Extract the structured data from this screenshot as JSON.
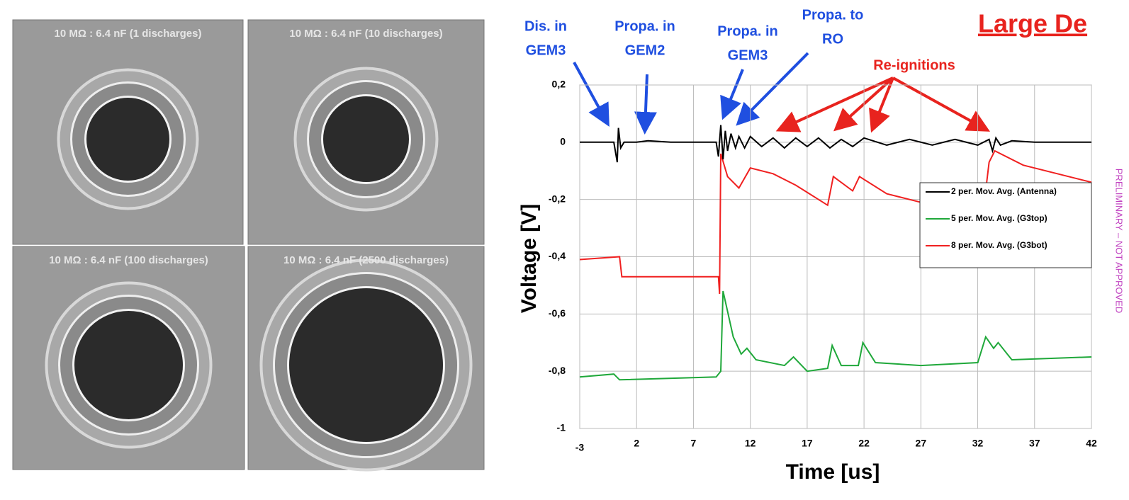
{
  "panels": [
    {
      "label": "10 MΩ : 6.4 nF (1 discharges)"
    },
    {
      "label": "10 MΩ : 6.4 nF  (10 discharges)"
    },
    {
      "label": "10 MΩ : 6.4 nF  (100 discharges)"
    },
    {
      "label": "10 MΩ : 6.4 nF  (2500 discharges)"
    }
  ],
  "slide_title": "Large De",
  "watermark": "PRELIMINARY – NOT APPROVED",
  "chart_data": {
    "type": "line",
    "x_label": "Time [us]",
    "y_label": "Voltage [V]",
    "xlim": [
      -3,
      42
    ],
    "xticks": [
      -3,
      2,
      7,
      12,
      17,
      22,
      27,
      32,
      37,
      42
    ],
    "ylim": [
      -1,
      0.2
    ],
    "yticks": [
      {
        "value": 0.2,
        "label": "0,2"
      },
      0,
      {
        "value": -0.2,
        "label": "-0,2"
      },
      {
        "value": -0.4,
        "label": "-0,4"
      },
      {
        "value": -0.6,
        "label": "-0,6"
      },
      {
        "value": -0.8,
        "label": "-0,8"
      },
      -1
    ],
    "grid": true,
    "legend": "right",
    "annotations": [
      {
        "lines": [
          "Dis. in",
          "GEM3"
        ],
        "color": "#1f4fe0"
      },
      {
        "lines": [
          "Propa. in",
          "GEM2"
        ],
        "color": "#1f4fe0"
      },
      {
        "lines": [
          "Propa. in",
          "GEM3"
        ],
        "color": "#1f4fe0"
      },
      {
        "lines": [
          "Propa. to",
          "RO"
        ],
        "color": "#1f4fe0"
      },
      {
        "lines": [
          "Re-ignitions"
        ],
        "color": "#e8231e"
      }
    ],
    "series": [
      {
        "name": "2 per. Mov. Avg.  (Antenna)",
        "color": "#000000",
        "x": [
          -3,
          0,
          0.3,
          0.4,
          0.6,
          0.9,
          2,
          3,
          5,
          7,
          9,
          9.2,
          9.4,
          9.6,
          9.8,
          10,
          10.3,
          10.7,
          11,
          11.5,
          12,
          13,
          14,
          15,
          16,
          17,
          18,
          19,
          20,
          21,
          22,
          24,
          26,
          28,
          30,
          32,
          33,
          33.3,
          33.6,
          34,
          35,
          37,
          39,
          42
        ],
        "values": [
          0,
          0,
          -0.07,
          0.05,
          -0.02,
          0,
          0,
          0.005,
          0,
          0,
          0,
          -0.05,
          0.06,
          -0.06,
          0.04,
          -0.03,
          0.03,
          -0.02,
          0.02,
          -0.02,
          0.02,
          -0.015,
          0.015,
          -0.02,
          0.015,
          -0.015,
          0.015,
          -0.02,
          0.01,
          -0.015,
          0.015,
          -0.01,
          0.01,
          -0.01,
          0.01,
          -0.01,
          0.01,
          -0.03,
          0.015,
          -0.01,
          0.005,
          0,
          0,
          0
        ]
      },
      {
        "name": "5 per. Mov. Avg.  (G3top)",
        "color": "#1fa83a",
        "x": [
          -3,
          0,
          0.5,
          9,
          9.4,
          9.6,
          10.5,
          11.2,
          11.7,
          12.5,
          15,
          15.8,
          17,
          18.8,
          19.2,
          20,
          21.5,
          21.9,
          23,
          27,
          32,
          32.7,
          33.4,
          33.8,
          35,
          42
        ],
        "values": [
          -0.82,
          -0.81,
          -0.83,
          -0.82,
          -0.8,
          -0.52,
          -0.68,
          -0.74,
          -0.72,
          -0.76,
          -0.78,
          -0.75,
          -0.8,
          -0.79,
          -0.71,
          -0.78,
          -0.78,
          -0.7,
          -0.77,
          -0.78,
          -0.77,
          -0.68,
          -0.72,
          -0.7,
          -0.76,
          -0.75
        ]
      },
      {
        "name": "8  per. Mov. Avg.  (G3bot)",
        "color": "#f02020",
        "x": [
          -3,
          0.5,
          0.7,
          9.2,
          9.3,
          9.4,
          10,
          11,
          12,
          14,
          16,
          18,
          18.8,
          19.3,
          21,
          21.6,
          24,
          27,
          30,
          32.5,
          33,
          33.5,
          36,
          39,
          42
        ],
        "values": [
          -0.41,
          -0.4,
          -0.47,
          -0.47,
          -0.53,
          -0.04,
          -0.12,
          -0.16,
          -0.09,
          -0.11,
          -0.15,
          -0.2,
          -0.22,
          -0.12,
          -0.17,
          -0.12,
          -0.18,
          -0.21,
          -0.23,
          -0.235,
          -0.07,
          -0.03,
          -0.08,
          -0.11,
          -0.14
        ]
      }
    ]
  }
}
